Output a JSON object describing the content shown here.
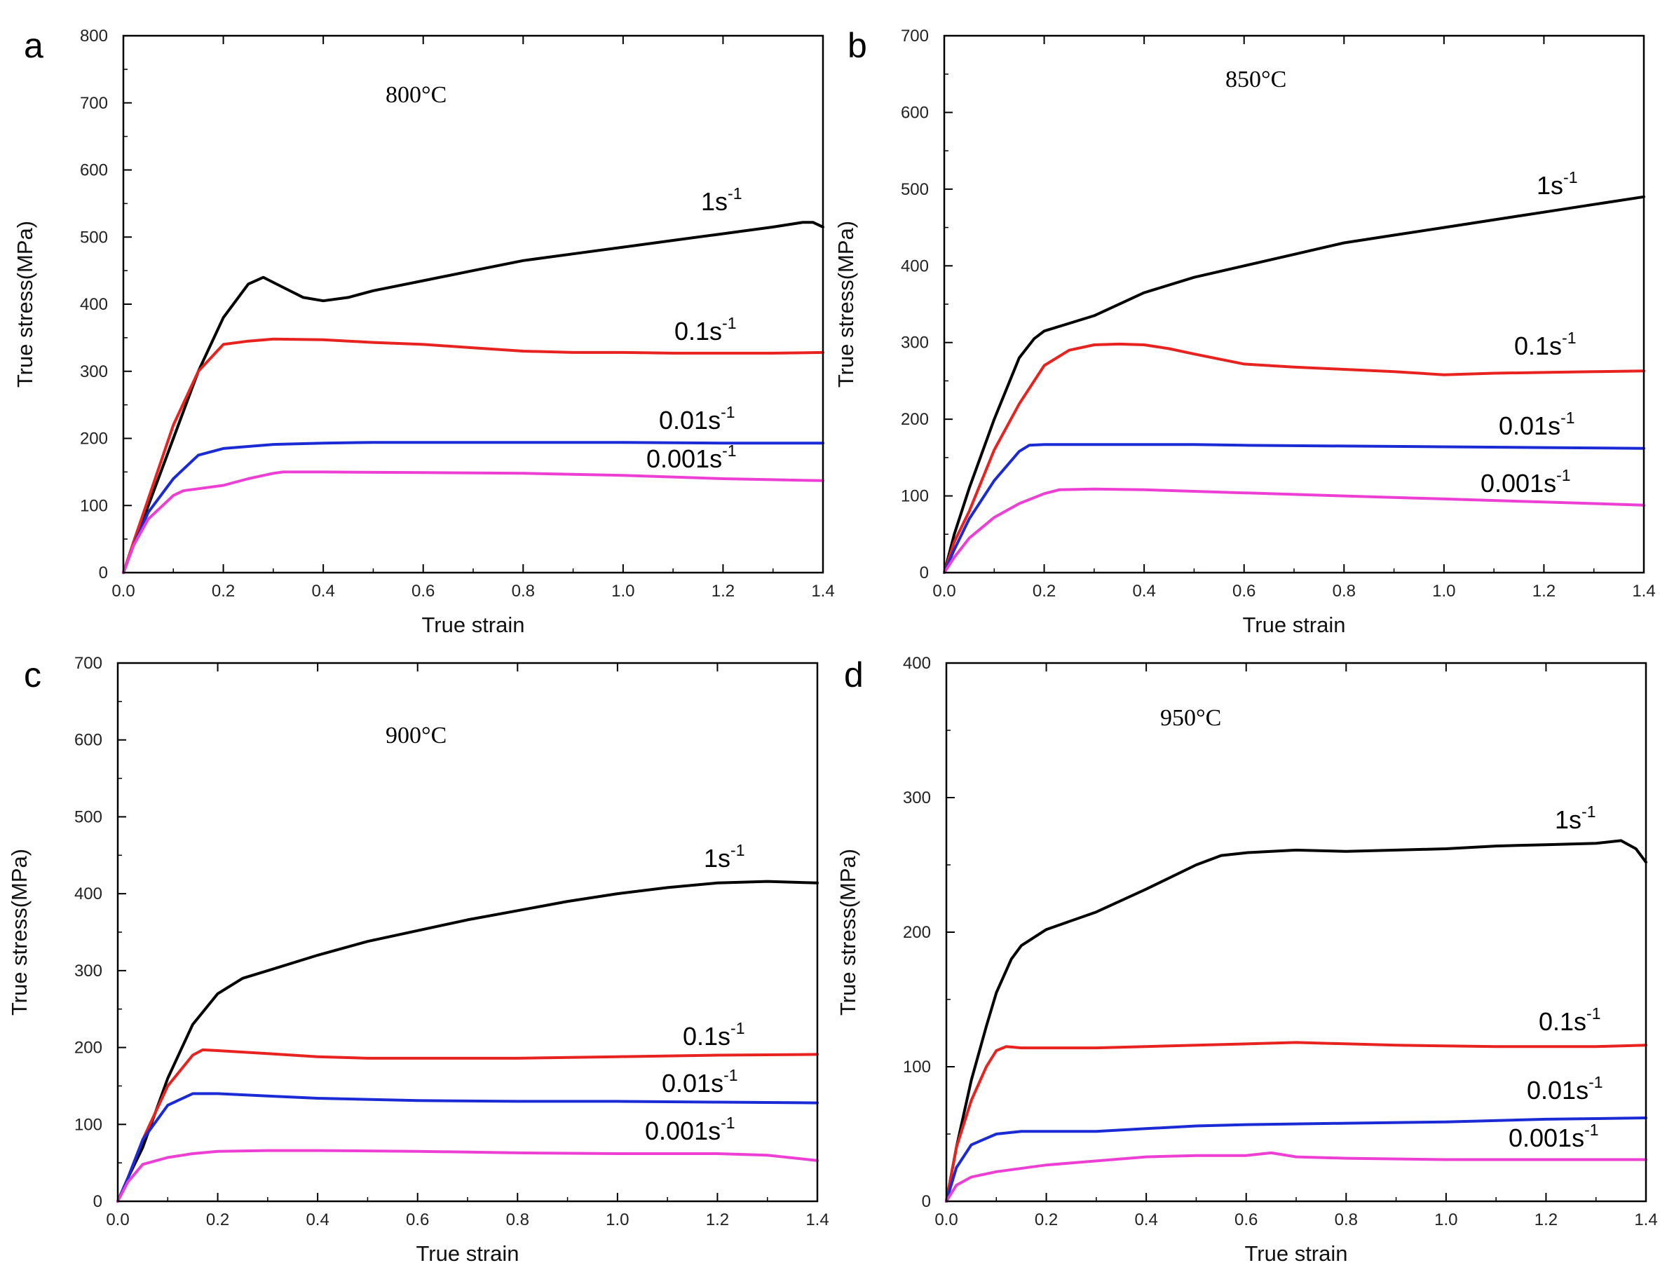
{
  "chart_data": [
    {
      "panel": "a",
      "type": "line",
      "title": "800°C",
      "xlabel": "True strain",
      "ylabel": "True stress(MPa)",
      "xlim": [
        0,
        1.4
      ],
      "ylim": [
        0,
        800
      ],
      "xticks": [
        "0.0",
        "0.2",
        "0.4",
        "0.6",
        "0.8",
        "1.0",
        "1.2",
        "1.4"
      ],
      "yticks": [
        "0",
        "100",
        "200",
        "300",
        "400",
        "500",
        "600",
        "700",
        "800"
      ],
      "series": [
        {
          "name": "1s",
          "exp": "-1",
          "color": "#000000",
          "x": [
            0,
            0.02,
            0.05,
            0.1,
            0.15,
            0.2,
            0.25,
            0.28,
            0.32,
            0.36,
            0.4,
            0.45,
            0.5,
            0.6,
            0.7,
            0.8,
            0.9,
            1.0,
            1.1,
            1.2,
            1.3,
            1.36,
            1.38,
            1.4
          ],
          "y": [
            0,
            40,
            100,
            200,
            300,
            380,
            430,
            440,
            425,
            410,
            405,
            410,
            420,
            435,
            450,
            465,
            475,
            485,
            495,
            505,
            515,
            522,
            522,
            515
          ]
        },
        {
          "name": "0.1s",
          "exp": "-1",
          "color": "#e8221f",
          "x": [
            0,
            0.02,
            0.05,
            0.1,
            0.15,
            0.2,
            0.25,
            0.3,
            0.4,
            0.5,
            0.6,
            0.7,
            0.8,
            0.9,
            1.0,
            1.1,
            1.2,
            1.3,
            1.4
          ],
          "y": [
            0,
            45,
            110,
            220,
            300,
            340,
            345,
            348,
            347,
            343,
            340,
            335,
            330,
            328,
            328,
            327,
            327,
            327,
            328
          ]
        },
        {
          "name": "0.01s",
          "exp": "-1",
          "color": "#1a2bd6",
          "x": [
            0,
            0.02,
            0.05,
            0.1,
            0.15,
            0.2,
            0.25,
            0.3,
            0.4,
            0.5,
            0.6,
            0.8,
            1.0,
            1.2,
            1.4
          ],
          "y": [
            0,
            40,
            90,
            140,
            175,
            185,
            188,
            191,
            193,
            194,
            194,
            194,
            194,
            193,
            193
          ]
        },
        {
          "name": "0.001s",
          "exp": "-1",
          "color": "#ee3fd4",
          "x": [
            0,
            0.02,
            0.05,
            0.1,
            0.12,
            0.15,
            0.2,
            0.25,
            0.3,
            0.32,
            0.4,
            0.6,
            0.8,
            1.0,
            1.2,
            1.4
          ],
          "y": [
            0,
            40,
            80,
            115,
            122,
            125,
            130,
            140,
            148,
            150,
            150,
            149,
            148,
            145,
            140,
            137
          ]
        }
      ]
    },
    {
      "panel": "b",
      "type": "line",
      "title": "850°C",
      "xlabel": "True strain",
      "ylabel": "True stress(MPa)",
      "xlim": [
        0,
        1.4
      ],
      "ylim": [
        0,
        700
      ],
      "xticks": [
        "0.0",
        "0.2",
        "0.4",
        "0.6",
        "0.8",
        "1.0",
        "1.2",
        "1.4"
      ],
      "yticks": [
        "0",
        "100",
        "200",
        "300",
        "400",
        "500",
        "600",
        "700"
      ],
      "series": [
        {
          "name": "1s",
          "exp": "-1",
          "color": "#000000",
          "x": [
            0,
            0.02,
            0.05,
            0.1,
            0.15,
            0.18,
            0.2,
            0.25,
            0.3,
            0.4,
            0.5,
            0.6,
            0.7,
            0.8,
            0.9,
            1.0,
            1.1,
            1.2,
            1.3,
            1.4
          ],
          "y": [
            0,
            50,
            110,
            200,
            280,
            305,
            315,
            325,
            335,
            365,
            385,
            400,
            415,
            430,
            440,
            450,
            460,
            470,
            480,
            490
          ]
        },
        {
          "name": "0.1s",
          "exp": "-1",
          "color": "#e8221f",
          "x": [
            0,
            0.02,
            0.05,
            0.1,
            0.15,
            0.2,
            0.25,
            0.3,
            0.35,
            0.4,
            0.45,
            0.5,
            0.6,
            0.7,
            0.8,
            0.9,
            1.0,
            1.1,
            1.2,
            1.3,
            1.4
          ],
          "y": [
            0,
            40,
            80,
            160,
            220,
            270,
            290,
            297,
            298,
            297,
            292,
            285,
            272,
            268,
            265,
            262,
            258,
            260,
            261,
            262,
            263
          ]
        },
        {
          "name": "0.01s",
          "exp": "-1",
          "color": "#1a2bd6",
          "x": [
            0,
            0.02,
            0.05,
            0.1,
            0.15,
            0.17,
            0.2,
            0.3,
            0.4,
            0.5,
            0.6,
            0.8,
            1.0,
            1.2,
            1.4
          ],
          "y": [
            0,
            30,
            70,
            120,
            158,
            166,
            167,
            167,
            167,
            167,
            166,
            165,
            164,
            163,
            162
          ]
        },
        {
          "name": "0.001s",
          "exp": "-1",
          "color": "#ee3fd4",
          "x": [
            0,
            0.02,
            0.05,
            0.1,
            0.15,
            0.2,
            0.23,
            0.3,
            0.4,
            0.6,
            0.8,
            1.0,
            1.2,
            1.4
          ],
          "y": [
            0,
            20,
            45,
            72,
            90,
            103,
            108,
            109,
            108,
            104,
            100,
            96,
            92,
            88
          ]
        }
      ]
    },
    {
      "panel": "c",
      "type": "line",
      "title": "900°C",
      "xlabel": "True strain",
      "ylabel": "True stress(MPa)",
      "xlim": [
        0,
        1.4
      ],
      "ylim": [
        0,
        700
      ],
      "xticks": [
        "0.0",
        "0.2",
        "0.4",
        "0.6",
        "0.8",
        "1.0",
        "1.2",
        "1.4"
      ],
      "yticks": [
        "0",
        "100",
        "200",
        "300",
        "400",
        "500",
        "600",
        "700"
      ],
      "series": [
        {
          "name": "1s",
          "exp": "-1",
          "color": "#000000",
          "x": [
            0,
            0.02,
            0.05,
            0.1,
            0.15,
            0.2,
            0.25,
            0.3,
            0.4,
            0.5,
            0.6,
            0.7,
            0.8,
            0.9,
            1.0,
            1.1,
            1.2,
            1.3,
            1.4
          ],
          "y": [
            0,
            30,
            70,
            160,
            230,
            270,
            290,
            300,
            320,
            338,
            352,
            366,
            378,
            390,
            400,
            408,
            414,
            416,
            414
          ]
        },
        {
          "name": "0.1s",
          "exp": "-1",
          "color": "#e8221f",
          "x": [
            0,
            0.02,
            0.05,
            0.1,
            0.15,
            0.17,
            0.2,
            0.3,
            0.4,
            0.5,
            0.6,
            0.8,
            1.0,
            1.2,
            1.4
          ],
          "y": [
            0,
            30,
            80,
            150,
            190,
            197,
            196,
            192,
            188,
            186,
            186,
            186,
            188,
            190,
            191
          ]
        },
        {
          "name": "0.01s",
          "exp": "-1",
          "color": "#1a2bd6",
          "x": [
            0,
            0.02,
            0.05,
            0.1,
            0.15,
            0.2,
            0.3,
            0.4,
            0.6,
            0.8,
            1.0,
            1.2,
            1.4
          ],
          "y": [
            0,
            30,
            80,
            125,
            140,
            140,
            137,
            134,
            131,
            130,
            130,
            129,
            128
          ]
        },
        {
          "name": "0.001s",
          "exp": "-1",
          "color": "#ee3fd4",
          "x": [
            0,
            0.02,
            0.05,
            0.1,
            0.15,
            0.2,
            0.3,
            0.4,
            0.6,
            0.8,
            1.0,
            1.2,
            1.3,
            1.4
          ],
          "y": [
            0,
            25,
            48,
            57,
            62,
            65,
            66,
            66,
            65,
            63,
            62,
            62,
            60,
            53
          ]
        }
      ]
    },
    {
      "panel": "d",
      "type": "line",
      "title": "950°C",
      "xlabel": "True strain",
      "ylabel": "True stress(MPa)",
      "xlim": [
        0,
        1.4
      ],
      "ylim": [
        0,
        400
      ],
      "xticks": [
        "0.0",
        "0.2",
        "0.4",
        "0.6",
        "0.8",
        "1.0",
        "1.2",
        "1.4"
      ],
      "yticks": [
        "0",
        "100",
        "200",
        "300",
        "400"
      ],
      "series": [
        {
          "name": "1s",
          "exp": "-1",
          "color": "#000000",
          "x": [
            0,
            0.02,
            0.05,
            0.08,
            0.1,
            0.13,
            0.15,
            0.2,
            0.3,
            0.4,
            0.5,
            0.55,
            0.6,
            0.7,
            0.8,
            0.9,
            1.0,
            1.1,
            1.2,
            1.3,
            1.35,
            1.38,
            1.4
          ],
          "y": [
            0,
            40,
            90,
            130,
            155,
            180,
            190,
            202,
            215,
            232,
            250,
            257,
            259,
            261,
            260,
            261,
            262,
            264,
            265,
            266,
            268,
            262,
            252
          ]
        },
        {
          "name": "0.1s",
          "exp": "-1",
          "color": "#e8221f",
          "x": [
            0,
            0.02,
            0.05,
            0.08,
            0.1,
            0.12,
            0.15,
            0.2,
            0.3,
            0.5,
            0.7,
            0.9,
            1.1,
            1.3,
            1.4
          ],
          "y": [
            0,
            40,
            75,
            100,
            112,
            115,
            114,
            114,
            114,
            116,
            118,
            116,
            115,
            115,
            116
          ]
        },
        {
          "name": "0.01s",
          "exp": "-1",
          "color": "#1a2bd6",
          "x": [
            0,
            0.02,
            0.05,
            0.1,
            0.15,
            0.2,
            0.3,
            0.4,
            0.5,
            0.6,
            0.8,
            1.0,
            1.2,
            1.4
          ],
          "y": [
            0,
            25,
            42,
            50,
            52,
            52,
            52,
            54,
            56,
            57,
            58,
            59,
            61,
            62
          ]
        },
        {
          "name": "0.001s",
          "exp": "-1",
          "color": "#ee3fd4",
          "x": [
            0,
            0.02,
            0.05,
            0.1,
            0.2,
            0.3,
            0.4,
            0.5,
            0.6,
            0.65,
            0.7,
            0.8,
            1.0,
            1.2,
            1.4
          ],
          "y": [
            0,
            12,
            18,
            22,
            27,
            30,
            33,
            34,
            34,
            36,
            33,
            32,
            31,
            31,
            31
          ]
        }
      ]
    }
  ]
}
